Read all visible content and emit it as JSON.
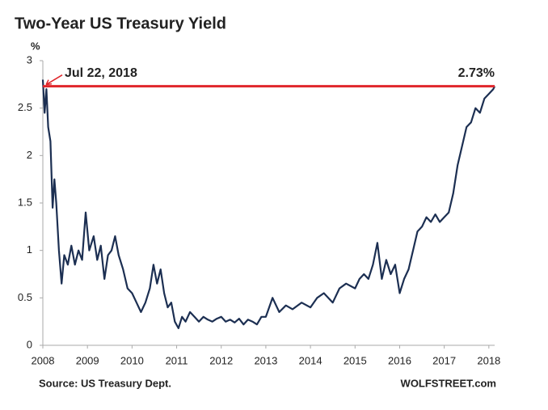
{
  "chart_data": {
    "type": "line",
    "title": "Two-Year US Treasury Yield",
    "y_label": "%",
    "source": "Source: US Treasury Dept.",
    "credit": "WOLFSTREET.com",
    "annotation": "Jul 22, 2018",
    "reference_line": {
      "value": 2.73,
      "label": "2.73%",
      "color": "#e0262b"
    },
    "x": [
      2008.0,
      2008.04,
      2008.08,
      2008.12,
      2008.17,
      2008.22,
      2008.26,
      2008.3,
      2008.36,
      2008.42,
      2008.48,
      2008.56,
      2008.64,
      2008.72,
      2008.8,
      2008.88,
      2008.96,
      2009.04,
      2009.14,
      2009.22,
      2009.3,
      2009.38,
      2009.46,
      2009.54,
      2009.62,
      2009.7,
      2009.8,
      2009.9,
      2010.0,
      2010.1,
      2010.2,
      2010.3,
      2010.4,
      2010.48,
      2010.56,
      2010.64,
      2010.72,
      2010.8,
      2010.88,
      2010.96,
      2011.04,
      2011.12,
      2011.2,
      2011.3,
      2011.4,
      2011.5,
      2011.6,
      2011.7,
      2011.8,
      2011.9,
      2012.0,
      2012.1,
      2012.2,
      2012.3,
      2012.4,
      2012.5,
      2012.6,
      2012.7,
      2012.8,
      2012.9,
      2013.0,
      2013.15,
      2013.3,
      2013.45,
      2013.6,
      2013.8,
      2014.0,
      2014.15,
      2014.3,
      2014.5,
      2014.65,
      2014.8,
      2015.0,
      2015.1,
      2015.2,
      2015.3,
      2015.4,
      2015.5,
      2015.6,
      2015.7,
      2015.8,
      2015.9,
      2016.0,
      2016.1,
      2016.2,
      2016.3,
      2016.4,
      2016.5,
      2016.6,
      2016.7,
      2016.8,
      2016.9,
      2017.0,
      2017.1,
      2017.2,
      2017.3,
      2017.4,
      2017.5,
      2017.6,
      2017.7,
      2017.8,
      2017.9,
      2018.0,
      2018.1,
      2018.13
    ],
    "series": [
      {
        "name": "Two-Year US Treasury Yield",
        "color": "#1c2f52",
        "values": [
          2.8,
          2.45,
          2.7,
          2.3,
          2.15,
          1.45,
          1.75,
          1.5,
          1.0,
          0.65,
          0.95,
          0.85,
          1.05,
          0.85,
          1.0,
          0.9,
          1.4,
          1.0,
          1.15,
          0.9,
          1.05,
          0.7,
          0.95,
          1.0,
          1.15,
          0.95,
          0.8,
          0.6,
          0.55,
          0.45,
          0.35,
          0.45,
          0.6,
          0.85,
          0.65,
          0.8,
          0.55,
          0.4,
          0.45,
          0.25,
          0.18,
          0.3,
          0.25,
          0.35,
          0.3,
          0.25,
          0.3,
          0.27,
          0.25,
          0.28,
          0.3,
          0.25,
          0.27,
          0.24,
          0.28,
          0.22,
          0.27,
          0.25,
          0.22,
          0.3,
          0.3,
          0.5,
          0.35,
          0.42,
          0.38,
          0.45,
          0.4,
          0.5,
          0.55,
          0.45,
          0.6,
          0.65,
          0.6,
          0.7,
          0.75,
          0.7,
          0.85,
          1.08,
          0.7,
          0.9,
          0.75,
          0.85,
          0.55,
          0.7,
          0.8,
          1.0,
          1.2,
          1.25,
          1.35,
          1.3,
          1.38,
          1.3,
          1.35,
          1.4,
          1.6,
          1.9,
          2.1,
          2.3,
          2.35,
          2.5,
          2.45,
          2.6,
          2.65,
          2.7,
          2.73
        ]
      }
    ],
    "xlim": [
      2008,
      2018.13
    ],
    "xticks": [
      2008,
      2009,
      2010,
      2011,
      2012,
      2013,
      2014,
      2015,
      2016,
      2017,
      2018
    ],
    "ylim": [
      0,
      3
    ],
    "yticks": [
      0,
      0.5,
      1,
      1.5,
      2,
      2.5,
      3
    ],
    "grid": false
  }
}
